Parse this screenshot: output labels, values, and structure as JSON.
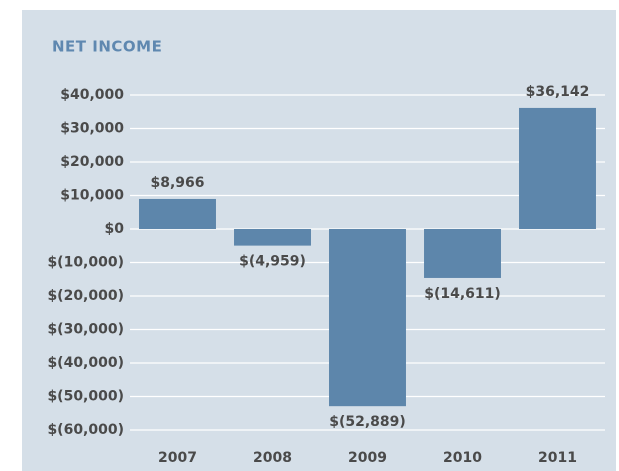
{
  "chart_data": {
    "type": "bar",
    "title": "NET INCOME",
    "categories": [
      "2007",
      "2008",
      "2009",
      "2010",
      "2011"
    ],
    "values": [
      8966,
      -4959,
      -52889,
      -14611,
      36142
    ],
    "value_labels": [
      "$8,966",
      "$(4,959)",
      "$(52,889)",
      "$(14,611)",
      "$36,142"
    ],
    "color": "#5d86ab",
    "ylim": [
      -60000,
      40000
    ],
    "yticks": [
      {
        "value": 40000,
        "label": "$40,000"
      },
      {
        "value": 30000,
        "label": "$30,000"
      },
      {
        "value": 20000,
        "label": "$20,000"
      },
      {
        "value": 10000,
        "label": "$10,000"
      },
      {
        "value": 0,
        "label": "$0"
      },
      {
        "value": -10000,
        "label": "$(10,000)"
      },
      {
        "value": -20000,
        "label": "$(20,000)"
      },
      {
        "value": -30000,
        "label": "$(30,000)"
      },
      {
        "value": -40000,
        "label": "$(40,000)"
      },
      {
        "value": -50000,
        "label": "$(50,000)"
      },
      {
        "value": -60000,
        "label": "$(60,000)"
      }
    ],
    "grid": true
  }
}
